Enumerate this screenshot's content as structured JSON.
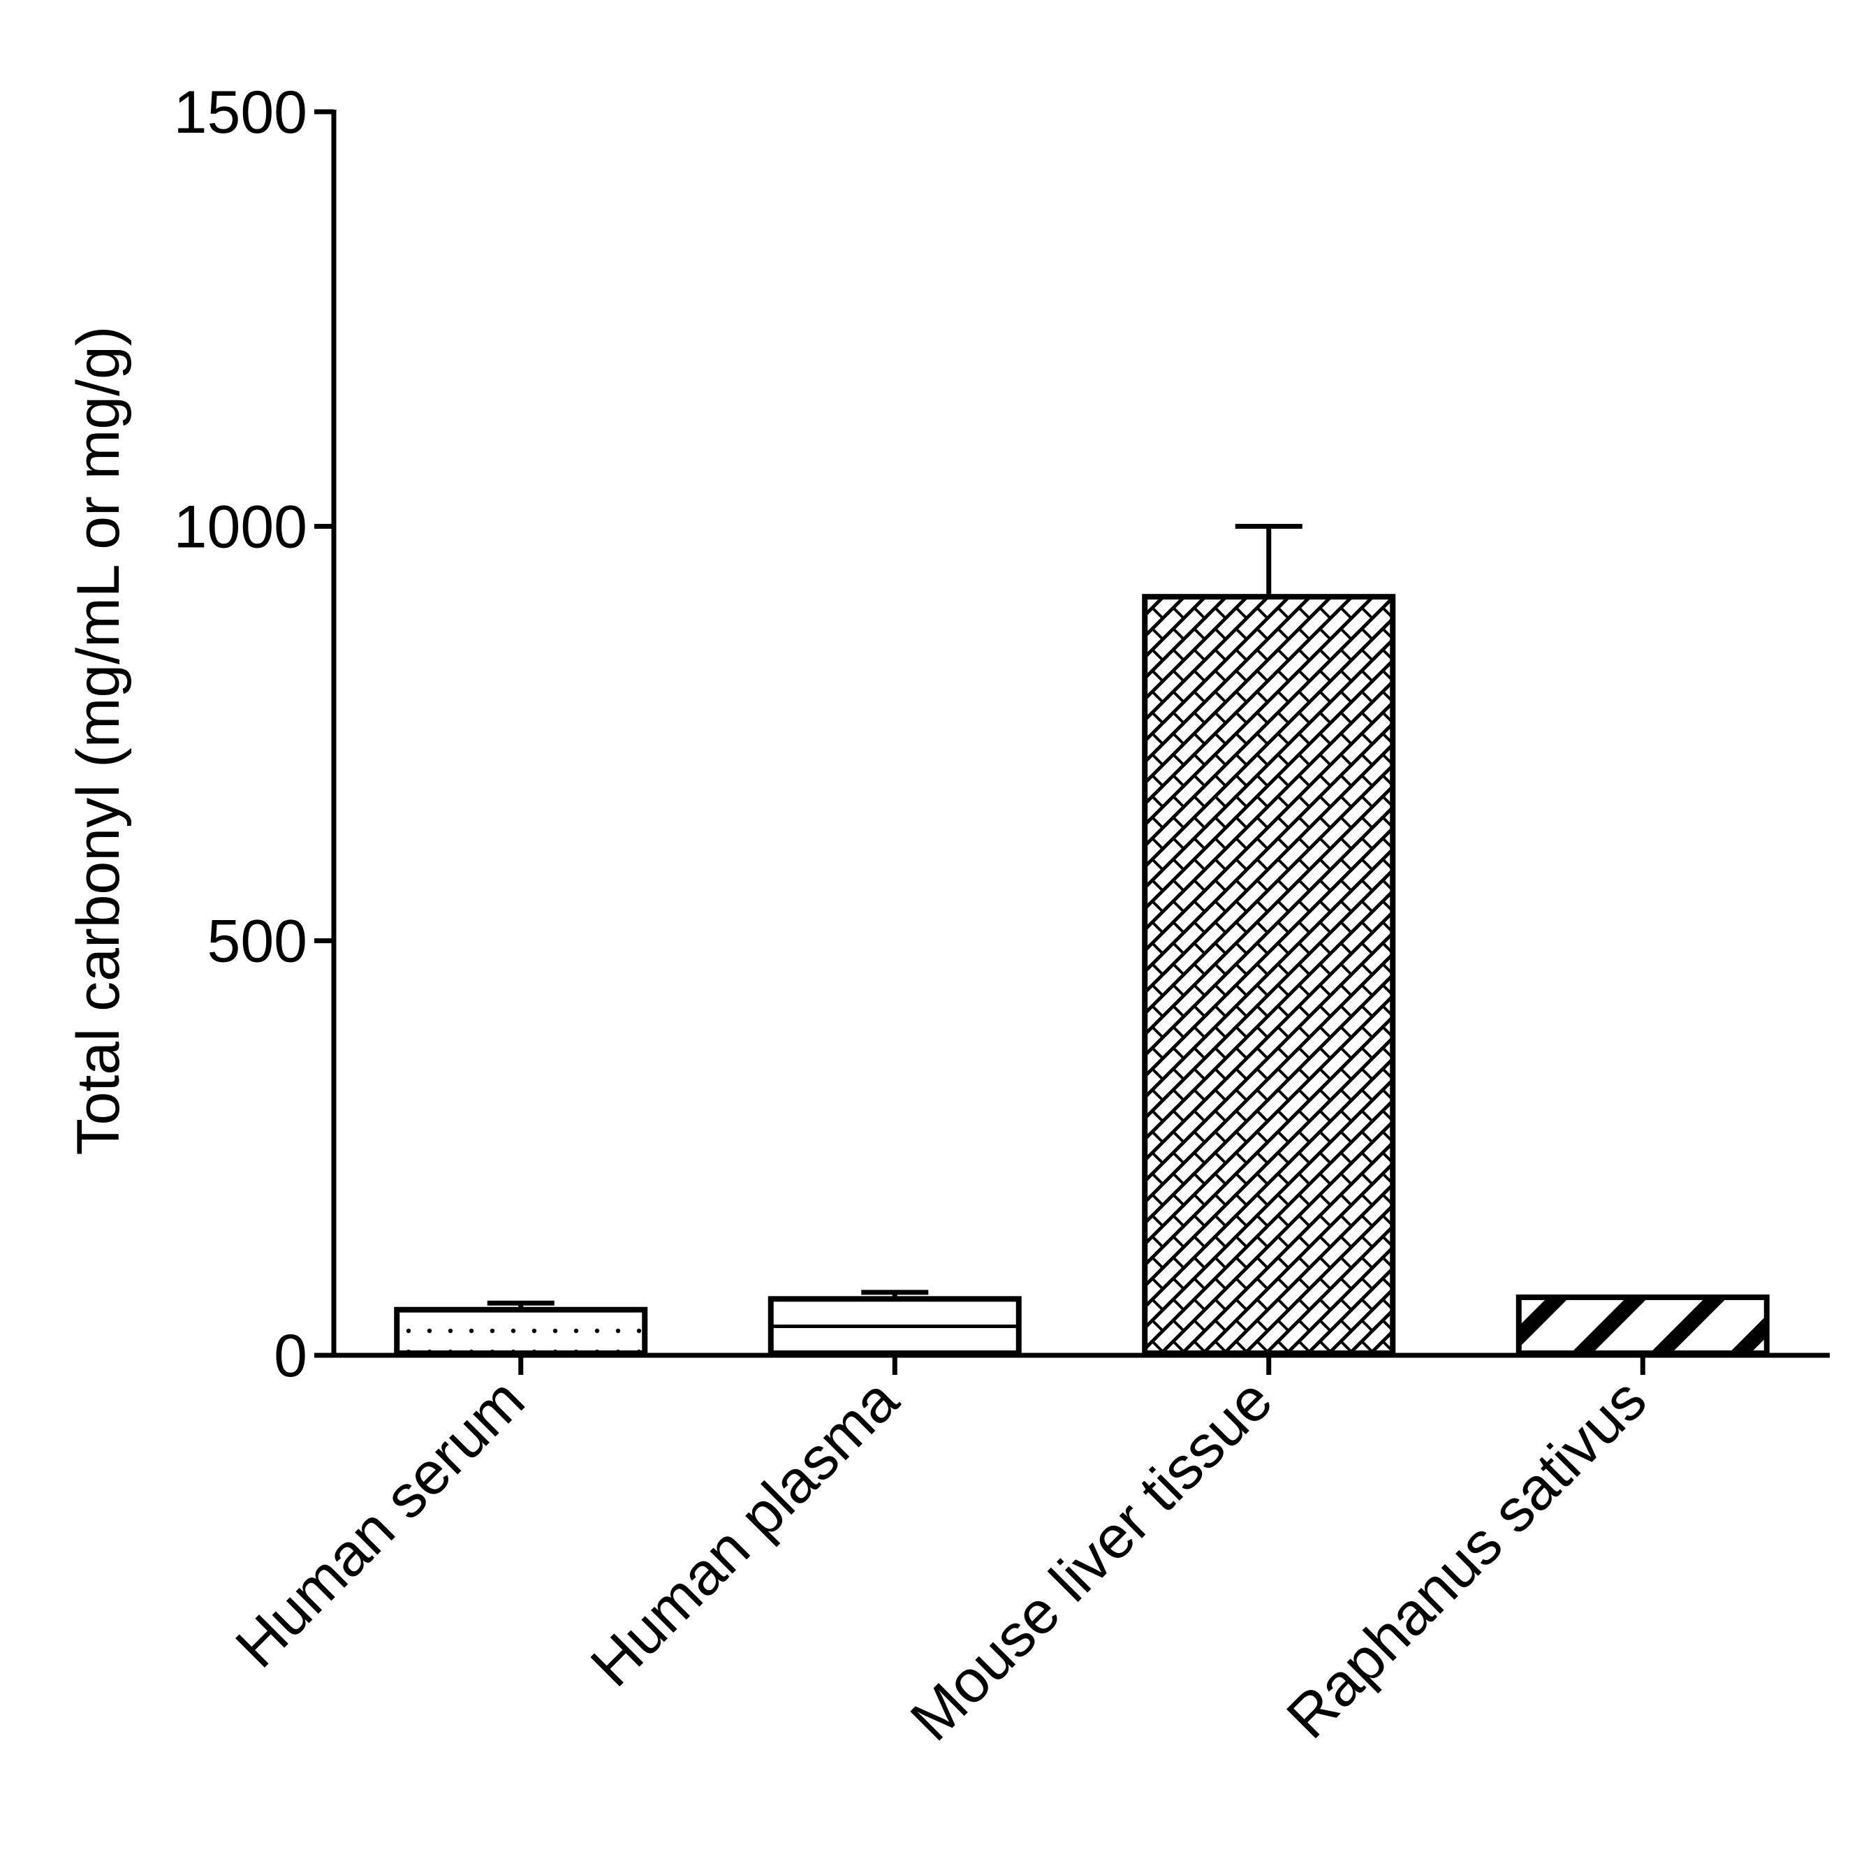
{
  "chart_data": {
    "type": "bar",
    "title": "",
    "xlabel": "",
    "ylabel": "Total carbonyl  (mg/mL or mg/g)",
    "ylim": [
      0,
      1500
    ],
    "yticks": [
      0,
      500,
      1000,
      1500
    ],
    "ytick_labels": [
      "0",
      "500",
      "1000",
      "1500"
    ],
    "grid": false,
    "legend": "none",
    "categories": [
      "Human serum",
      "Human plasma",
      "Mouse liver tissue",
      "Raphanus sativus"
    ],
    "series": [
      {
        "values": [
          55,
          68,
          915,
          70
        ],
        "error_upper": [
          8,
          8,
          85,
          0
        ],
        "fill_patterns": [
          "dots",
          "horizontal-lines",
          "crosshatch",
          "diagonal-stripes"
        ]
      }
    ],
    "colors": {
      "stroke": "#000000",
      "fill": "#ffffff"
    }
  }
}
